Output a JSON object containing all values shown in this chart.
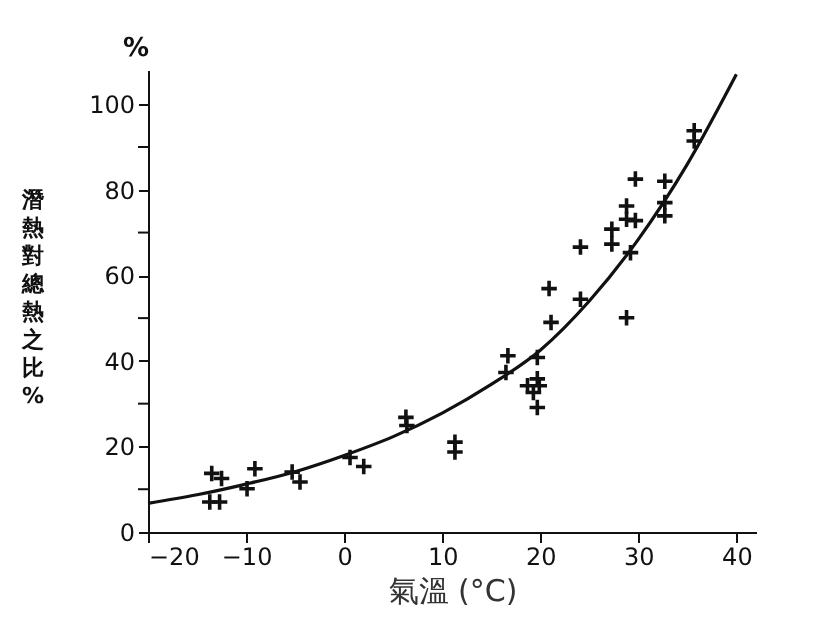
{
  "chart_data": {
    "type": "scatter",
    "xlabel": "氣溫 (°C)",
    "ylabel": "潛熱對總熱之比 %",
    "annotations": [
      "%"
    ],
    "xlim": [
      -20,
      42
    ],
    "xticks": [
      -20,
      -10,
      0,
      10,
      20,
      30,
      40
    ],
    "ylim": [
      0,
      108
    ],
    "yticks": [
      0,
      {
        "value": 10,
        "label": null
      },
      20,
      {
        "value": 30,
        "label": null
      },
      40,
      {
        "value": 50,
        "label": null
      },
      60,
      {
        "value": 70,
        "label": null
      },
      80,
      {
        "value": 90,
        "label": null
      },
      100
    ],
    "grid": false,
    "legend": false,
    "series": [
      {
        "type": "scatter",
        "color": "#111111",
        "marker": "cross",
        "x": [
          -13.5,
          -12.5,
          -13.7,
          -12.7,
          -9.9,
          -9.1,
          -5.3,
          -4.5,
          0.6,
          2.0,
          6.3,
          6.4,
          11.3,
          11.3,
          16.7,
          16.5,
          19.7,
          18.7,
          19.7,
          19.9,
          19.3,
          19.7,
          20.9,
          21.1,
          24.1,
          24.1,
          27.3,
          27.3,
          28.8,
          28.8,
          29.7,
          29.2,
          29.7,
          28.8,
          32.7,
          32.7,
          32.7,
          35.7,
          35.7
        ],
        "values": [
          13.7,
          12.5,
          7.0,
          7.0,
          10.1,
          14.8,
          14.0,
          11.7,
          17.4,
          15.3,
          26.8,
          24.9,
          21.0,
          18.7,
          41.2,
          37.3,
          40.8,
          34.2,
          35.8,
          34.2,
          32.6,
          29.1,
          56.9,
          49.0,
          66.6,
          54.4,
          70.8,
          67.3,
          76.2,
          73.1,
          72.8,
          65.3,
          82.5,
          50.1,
          82.0,
          77.0,
          73.9,
          93.8,
          91.4
        ]
      },
      {
        "type": "line",
        "color": "#111111",
        "marker": "none",
        "line_style": "solid",
        "x": [
          -20,
          -15,
          -10,
          -5,
          0,
          5,
          10,
          15,
          20,
          25,
          30,
          35,
          40
        ],
        "values": [
          6.7,
          8.7,
          11.2,
          14.1,
          17.9,
          22.3,
          27.8,
          34.5,
          42.5,
          54,
          68.4,
          86,
          107
        ]
      }
    ]
  }
}
